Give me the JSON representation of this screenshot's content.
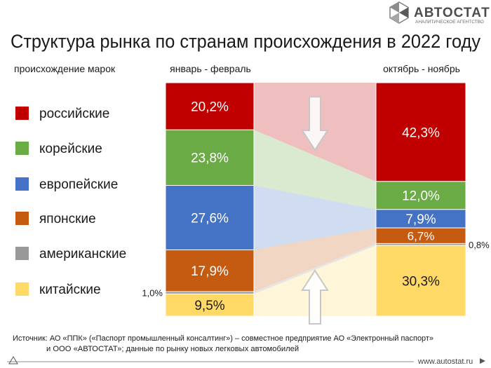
{
  "header": {
    "title": "Структура рынка по странам происхождения в 2022 году",
    "logo_name": "АВТОСТАТ",
    "logo_subtitle": "АНАЛИТИЧЕСКОЕ АГЕНТСТВО"
  },
  "legend_heading": "происхождение марок",
  "footer": {
    "source_line1": "Источник: АО «ППК» («Паспорт промышленный консалтинг») – совместное предприятие АО «Электронный паспорт»",
    "source_line2": "и ООО «АВТОСТАТ»; данные по рынку новых легковых автомобилей",
    "url": "www.autostat.ru"
  },
  "chart_data": {
    "type": "bar",
    "stacked": true,
    "normalized": true,
    "title": "Структура рынка по странам происхождения в 2022 году",
    "categories": [
      "январь - февраль",
      "октябрь - ноябрь"
    ],
    "series": [
      {
        "name": "российские",
        "color": "#c00000",
        "values": [
          20.2,
          42.3
        ],
        "labels": [
          "20,2%",
          "42,3%"
        ]
      },
      {
        "name": "корейские",
        "color": "#6aab45",
        "values": [
          23.8,
          12.0
        ],
        "labels": [
          "23,8%",
          "12,0%"
        ]
      },
      {
        "name": "европейские",
        "color": "#4472c4",
        "values": [
          27.6,
          7.9
        ],
        "labels": [
          "27,6%",
          "7,9%"
        ]
      },
      {
        "name": "японские",
        "color": "#c55a11",
        "values": [
          17.9,
          6.7
        ],
        "labels": [
          "17,9%",
          "6,7%"
        ]
      },
      {
        "name": "американские",
        "color": "#999999",
        "values": [
          1.0,
          0.8
        ],
        "labels": [
          "1,0%",
          "0,8%"
        ]
      },
      {
        "name": "китайские",
        "color": "#ffd966",
        "values": [
          9.5,
          30.3
        ],
        "labels": [
          "9,5%",
          "30,3%"
        ]
      }
    ],
    "arrows": [
      {
        "series": "российские",
        "direction": "down"
      },
      {
        "series": "китайские",
        "direction": "up"
      }
    ]
  }
}
